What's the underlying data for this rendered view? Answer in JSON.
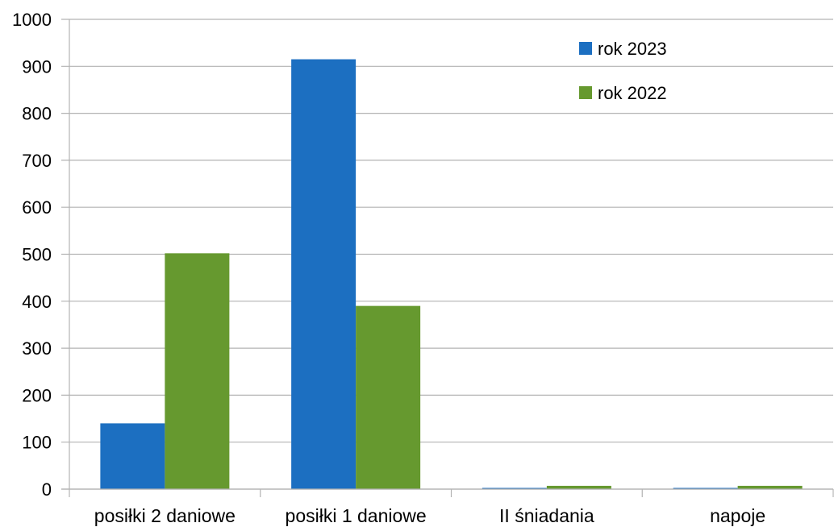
{
  "chart_data": {
    "type": "bar",
    "title": "",
    "xlabel": "",
    "ylabel": "",
    "categories": [
      "posiłki 2 daniowe",
      "posiłki 1 daniowe",
      "II śniadania",
      "napoje"
    ],
    "series": [
      {
        "name": "rok 2023",
        "color": "#1c6fc1",
        "values": [
          140,
          915,
          2,
          2
        ]
      },
      {
        "name": "rok 2022",
        "color": "#66992f",
        "values": [
          502,
          390,
          7,
          7
        ]
      }
    ],
    "ylim": [
      0,
      1000
    ],
    "yticks": [
      0,
      100,
      200,
      300,
      400,
      500,
      600,
      700,
      800,
      900,
      1000
    ],
    "grid": true,
    "legend": "top-right"
  }
}
